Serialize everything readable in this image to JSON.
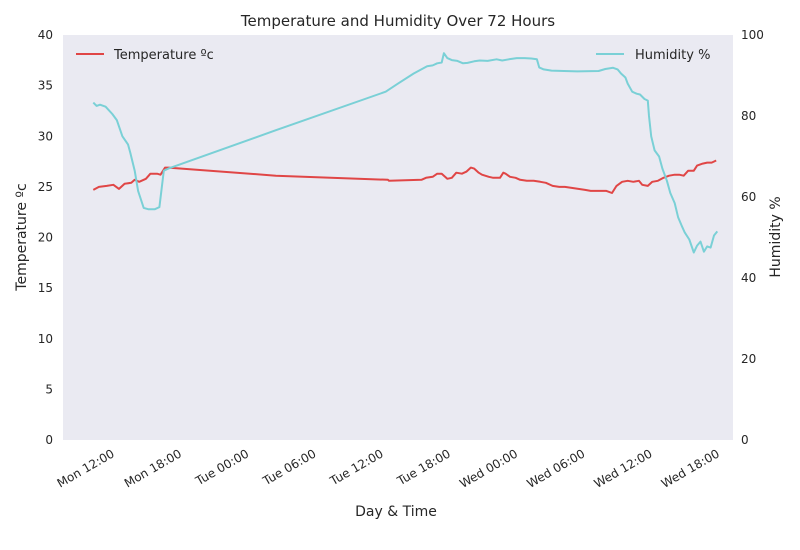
{
  "chart_data": {
    "type": "line",
    "title": "Temperature and Humidity Over 72 Hours",
    "xlabel": "Day & Time",
    "ylabel_left": "Temperature ºc",
    "ylabel_right": "Humidity %",
    "x_unit": "hours since Mon 00:00",
    "x_range": [
      7.6,
      67.4
    ],
    "ylim_left": [
      0,
      40
    ],
    "ylim_right": [
      0,
      100
    ],
    "grid": false,
    "x_ticks": [
      {
        "value": 12,
        "label": "Mon 12:00"
      },
      {
        "value": 18,
        "label": "Mon 18:00"
      },
      {
        "value": 24,
        "label": "Tue 00:00"
      },
      {
        "value": 30,
        "label": "Tue 06:00"
      },
      {
        "value": 36,
        "label": "Tue 12:00"
      },
      {
        "value": 42,
        "label": "Tue 18:00"
      },
      {
        "value": 48,
        "label": "Wed 00:00"
      },
      {
        "value": 54,
        "label": "Wed 06:00"
      },
      {
        "value": 60,
        "label": "Wed 12:00"
      },
      {
        "value": 66,
        "label": "Wed 18:00"
      }
    ],
    "y_ticks_left": [
      "0",
      "5",
      "10",
      "15",
      "20",
      "25",
      "30",
      "35",
      "40"
    ],
    "y_ticks_right": [
      "0",
      "20",
      "40",
      "60",
      "80",
      "100"
    ],
    "colors": {
      "temperature": "#e04646",
      "humidity": "#7ad0d6",
      "plot_bg": "#eaeaf2"
    },
    "series": [
      {
        "name": "Temperature ºc",
        "axis": "left",
        "legend": "top-left",
        "points": [
          [
            10.3,
            24.7
          ],
          [
            10.8,
            25.0
          ],
          [
            11.5,
            25.1
          ],
          [
            12.1,
            25.2
          ],
          [
            12.6,
            24.8
          ],
          [
            13.1,
            25.3
          ],
          [
            13.7,
            25.4
          ],
          [
            14.0,
            25.7
          ],
          [
            14.4,
            25.5
          ],
          [
            15.0,
            25.8
          ],
          [
            15.4,
            26.3
          ],
          [
            16.0,
            26.3
          ],
          [
            16.3,
            26.2
          ],
          [
            16.7,
            26.9
          ],
          [
            17.0,
            26.9
          ],
          [
            26.6,
            26.1
          ],
          [
            36.6,
            25.7
          ],
          [
            36.7,
            25.6
          ],
          [
            39.6,
            25.7
          ],
          [
            40.0,
            25.9
          ],
          [
            40.6,
            26.0
          ],
          [
            41.0,
            26.3
          ],
          [
            41.4,
            26.3
          ],
          [
            41.9,
            25.8
          ],
          [
            42.3,
            25.9
          ],
          [
            42.7,
            26.4
          ],
          [
            43.2,
            26.3
          ],
          [
            43.6,
            26.5
          ],
          [
            44.0,
            26.9
          ],
          [
            44.3,
            26.8
          ],
          [
            44.7,
            26.4
          ],
          [
            45.0,
            26.2
          ],
          [
            45.6,
            26.0
          ],
          [
            46.0,
            25.9
          ],
          [
            46.6,
            25.9
          ],
          [
            46.9,
            26.4
          ],
          [
            47.1,
            26.3
          ],
          [
            47.5,
            26.0
          ],
          [
            48.0,
            25.9
          ],
          [
            48.4,
            25.7
          ],
          [
            49.0,
            25.6
          ],
          [
            49.6,
            25.6
          ],
          [
            50.2,
            25.5
          ],
          [
            50.7,
            25.4
          ],
          [
            51.3,
            25.1
          ],
          [
            51.9,
            25.0
          ],
          [
            52.4,
            25.0
          ],
          [
            53.0,
            24.9
          ],
          [
            53.6,
            24.8
          ],
          [
            54.2,
            24.7
          ],
          [
            54.7,
            24.6
          ],
          [
            55.5,
            24.6
          ],
          [
            56.1,
            24.6
          ],
          [
            56.6,
            24.4
          ],
          [
            57.0,
            25.1
          ],
          [
            57.5,
            25.5
          ],
          [
            58.0,
            25.6
          ],
          [
            58.5,
            25.5
          ],
          [
            59.0,
            25.6
          ],
          [
            59.3,
            25.2
          ],
          [
            59.8,
            25.1
          ],
          [
            60.2,
            25.5
          ],
          [
            60.7,
            25.6
          ],
          [
            61.2,
            25.9
          ],
          [
            61.7,
            26.1
          ],
          [
            62.2,
            26.2
          ],
          [
            62.6,
            26.2
          ],
          [
            63.0,
            26.1
          ],
          [
            63.4,
            26.6
          ],
          [
            63.9,
            26.6
          ],
          [
            64.2,
            27.1
          ],
          [
            64.7,
            27.3
          ],
          [
            65.1,
            27.4
          ],
          [
            65.5,
            27.4
          ],
          [
            65.9,
            27.6
          ]
        ]
      },
      {
        "name": "Humidity %",
        "axis": "right",
        "legend": "top-right",
        "points": [
          [
            10.3,
            83.3
          ],
          [
            10.6,
            82.5
          ],
          [
            10.9,
            82.8
          ],
          [
            11.4,
            82.3
          ],
          [
            12.0,
            80.5
          ],
          [
            12.4,
            79.0
          ],
          [
            12.9,
            75.0
          ],
          [
            13.4,
            73.0
          ],
          [
            13.6,
            71.0
          ],
          [
            14.0,
            66.5
          ],
          [
            14.3,
            61.5
          ],
          [
            14.8,
            57.3
          ],
          [
            15.2,
            57.0
          ],
          [
            15.8,
            57.0
          ],
          [
            16.2,
            57.5
          ],
          [
            16.6,
            66.5
          ],
          [
            17.0,
            67.0
          ],
          [
            26.6,
            76.5
          ],
          [
            36.4,
            86.0
          ],
          [
            37.5,
            88.0
          ],
          [
            38.9,
            90.5
          ],
          [
            40.1,
            92.3
          ],
          [
            40.6,
            92.5
          ],
          [
            41.0,
            93.0
          ],
          [
            41.4,
            93.2
          ],
          [
            41.6,
            95.5
          ],
          [
            41.9,
            94.3
          ],
          [
            42.3,
            93.8
          ],
          [
            42.8,
            93.6
          ],
          [
            43.3,
            93.0
          ],
          [
            43.7,
            93.1
          ],
          [
            44.3,
            93.5
          ],
          [
            44.8,
            93.7
          ],
          [
            45.5,
            93.6
          ],
          [
            46.3,
            94.0
          ],
          [
            46.8,
            93.7
          ],
          [
            47.4,
            94.0
          ],
          [
            48.1,
            94.3
          ],
          [
            48.8,
            94.3
          ],
          [
            49.4,
            94.2
          ],
          [
            49.9,
            94.0
          ],
          [
            50.1,
            92.0
          ],
          [
            50.5,
            91.5
          ],
          [
            51.2,
            91.2
          ],
          [
            52.3,
            91.1
          ],
          [
            53.5,
            91.0
          ],
          [
            55.4,
            91.1
          ],
          [
            56.0,
            91.6
          ],
          [
            56.7,
            91.9
          ],
          [
            57.1,
            91.5
          ],
          [
            57.4,
            90.5
          ],
          [
            57.8,
            89.5
          ],
          [
            58.0,
            88.0
          ],
          [
            58.4,
            86.0
          ],
          [
            58.8,
            85.5
          ],
          [
            59.1,
            85.3
          ],
          [
            59.5,
            84.2
          ],
          [
            59.8,
            83.8
          ],
          [
            59.9,
            80.0
          ],
          [
            60.1,
            75.0
          ],
          [
            60.4,
            71.5
          ],
          [
            60.8,
            70.0
          ],
          [
            61.1,
            67.0
          ],
          [
            61.5,
            64.0
          ],
          [
            61.8,
            61.0
          ],
          [
            62.2,
            58.5
          ],
          [
            62.5,
            55.0
          ],
          [
            62.8,
            53.0
          ],
          [
            63.1,
            51.2
          ],
          [
            63.5,
            49.5
          ],
          [
            63.9,
            46.3
          ],
          [
            64.2,
            48.0
          ],
          [
            64.5,
            49.0
          ],
          [
            64.8,
            46.5
          ],
          [
            65.1,
            47.8
          ],
          [
            65.4,
            47.5
          ],
          [
            65.7,
            50.5
          ],
          [
            66.0,
            51.5
          ]
        ]
      }
    ]
  }
}
